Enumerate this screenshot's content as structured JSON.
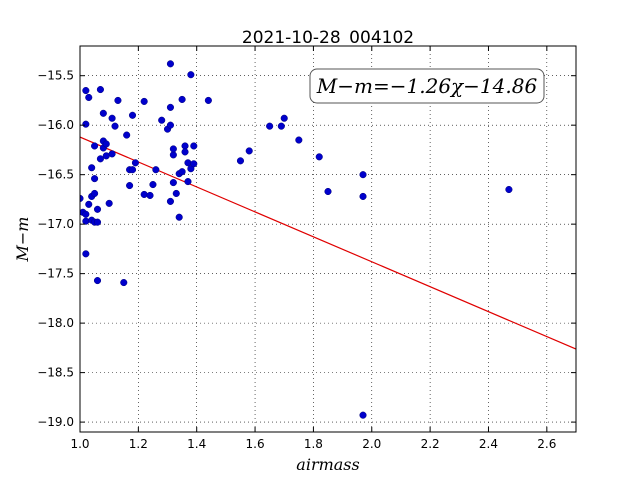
{
  "chart_data": {
    "type": "scatter",
    "title": "2021-10-28_004102",
    "xlabel": "airmass",
    "ylabel": "M−m",
    "annotation": "M−m=−1.26χ−14.86",
    "xlim": [
      1.0,
      2.7
    ],
    "ylim": [
      -19.1,
      -15.2
    ],
    "xticks": [
      1.0,
      1.2,
      1.4,
      1.6,
      1.8,
      2.0,
      2.2,
      2.4,
      2.6
    ],
    "xtick_labels": [
      "1.0",
      "1.2",
      "1.4",
      "1.6",
      "1.8",
      "2.0",
      "2.2",
      "2.4",
      "2.6"
    ],
    "yticks": [
      -15.5,
      -16.0,
      -16.5,
      -17.0,
      -17.5,
      -18.0,
      -18.5,
      -19.0
    ],
    "ytick_labels": [
      "−15.5",
      "−16.0",
      "−16.5",
      "−17.0",
      "−17.5",
      "−18.0",
      "−18.5",
      "−19.0"
    ],
    "grid": true,
    "fit_line": {
      "slope": -1.26,
      "intercept": -14.86,
      "color": "#e00000"
    },
    "marker_color": "#0000cc",
    "series": [
      {
        "points": [
          [
            1.0,
            -16.74
          ],
          [
            1.01,
            -16.88
          ],
          [
            1.02,
            -16.9
          ],
          [
            1.02,
            -16.97
          ],
          [
            1.02,
            -15.99
          ],
          [
            1.02,
            -15.65
          ],
          [
            1.03,
            -15.72
          ],
          [
            1.02,
            -17.3
          ],
          [
            1.03,
            -16.8
          ],
          [
            1.04,
            -16.96
          ],
          [
            1.04,
            -16.72
          ],
          [
            1.04,
            -16.43
          ],
          [
            1.05,
            -16.69
          ],
          [
            1.05,
            -16.54
          ],
          [
            1.05,
            -16.21
          ],
          [
            1.05,
            -16.98
          ],
          [
            1.06,
            -16.98
          ],
          [
            1.06,
            -17.57
          ],
          [
            1.06,
            -16.85
          ],
          [
            1.07,
            -16.34
          ],
          [
            1.07,
            -15.64
          ],
          [
            1.08,
            -15.88
          ],
          [
            1.08,
            -16.16
          ],
          [
            1.08,
            -16.23
          ],
          [
            1.09,
            -16.31
          ],
          [
            1.09,
            -16.19
          ],
          [
            1.1,
            -16.79
          ],
          [
            1.11,
            -15.93
          ],
          [
            1.11,
            -16.29
          ],
          [
            1.12,
            -16.01
          ],
          [
            1.13,
            -15.75
          ],
          [
            1.15,
            -17.59
          ],
          [
            1.16,
            -16.1
          ],
          [
            1.17,
            -16.61
          ],
          [
            1.17,
            -16.45
          ],
          [
            1.18,
            -16.45
          ],
          [
            1.18,
            -15.9
          ],
          [
            1.19,
            -16.38
          ],
          [
            1.22,
            -15.76
          ],
          [
            1.22,
            -16.7
          ],
          [
            1.24,
            -16.71
          ],
          [
            1.25,
            -16.6
          ],
          [
            1.26,
            -16.45
          ],
          [
            1.28,
            -15.95
          ],
          [
            1.3,
            -16.04
          ],
          [
            1.31,
            -15.38
          ],
          [
            1.31,
            -16.77
          ],
          [
            1.32,
            -16.58
          ],
          [
            1.32,
            -16.3
          ],
          [
            1.32,
            -16.24
          ],
          [
            1.31,
            -15.82
          ],
          [
            1.31,
            -16.0
          ],
          [
            1.33,
            -16.69
          ],
          [
            1.34,
            -16.93
          ],
          [
            1.34,
            -16.49
          ],
          [
            1.35,
            -16.47
          ],
          [
            1.35,
            -15.74
          ],
          [
            1.36,
            -16.21
          ],
          [
            1.36,
            -16.27
          ],
          [
            1.37,
            -16.38
          ],
          [
            1.37,
            -16.57
          ],
          [
            1.38,
            -16.44
          ],
          [
            1.38,
            -15.49
          ],
          [
            1.39,
            -16.39
          ],
          [
            1.39,
            -16.21
          ],
          [
            1.44,
            -15.75
          ],
          [
            1.55,
            -16.36
          ],
          [
            1.58,
            -16.26
          ],
          [
            1.65,
            -16.01
          ],
          [
            1.69,
            -16.01
          ],
          [
            1.7,
            -15.93
          ],
          [
            1.75,
            -16.15
          ],
          [
            1.82,
            -16.32
          ],
          [
            1.85,
            -16.67
          ],
          [
            1.97,
            -16.5
          ],
          [
            1.97,
            -16.72
          ],
          [
            1.97,
            -18.93
          ],
          [
            2.47,
            -16.65
          ]
        ]
      }
    ]
  }
}
